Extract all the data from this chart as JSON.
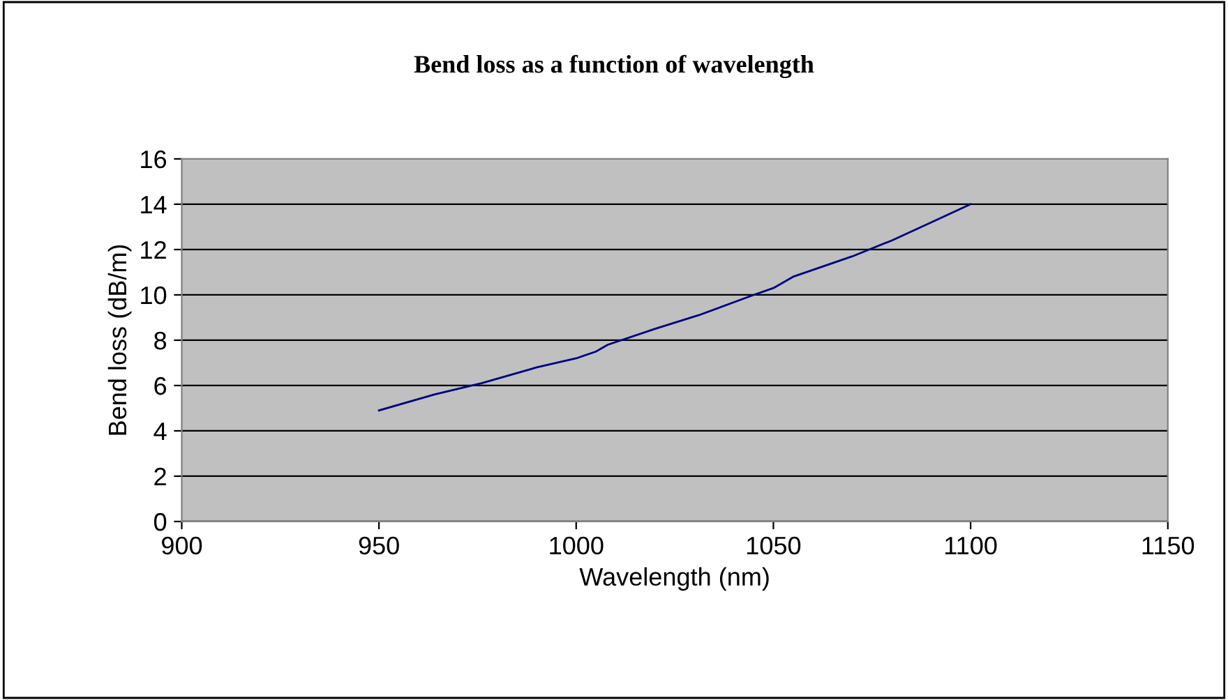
{
  "chart_data": {
    "type": "line",
    "title": "Bend loss as a function of wavelength",
    "xlabel": "Wavelength (nm)",
    "ylabel": "Bend loss (dB/m)",
    "series": [
      {
        "color": "#000080",
        "x": [
          950,
          964,
          976,
          990,
          1000,
          1005,
          1008,
          1020,
          1031,
          1045,
          1050,
          1055,
          1070,
          1080,
          1090,
          1100
        ],
        "values": [
          4.9,
          5.6,
          6.1,
          6.8,
          7.2,
          7.5,
          7.8,
          8.5,
          9.1,
          10.0,
          10.3,
          10.8,
          11.7,
          12.4,
          13.2,
          14.0
        ]
      }
    ],
    "xlim": [
      900,
      1150
    ],
    "xticks": [
      900,
      950,
      1000,
      1050,
      1100,
      1150
    ],
    "ylim": [
      0,
      16
    ],
    "yticks": [
      0,
      2,
      4,
      6,
      8,
      10,
      12,
      14,
      16
    ],
    "grid": "y",
    "legend": false,
    "marker": "none",
    "line_style": "solid"
  }
}
